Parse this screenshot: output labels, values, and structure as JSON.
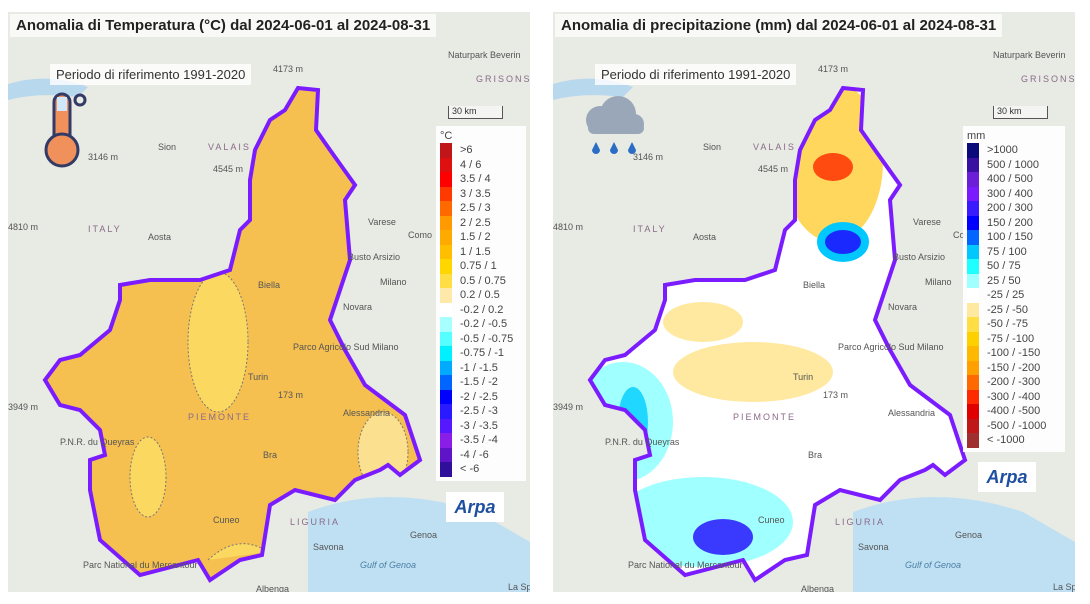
{
  "panels": [
    {
      "title": "Anomalia di Temperatura (°C) dal 2024-06-01 al 2024-08-31",
      "reference": "Periodo di riferimento 1991-2020",
      "icon": "thermometer-icon",
      "scale": "30 km",
      "unit": "°C",
      "logo": "Arpa",
      "legend": [
        {
          "label": ">6",
          "color": "#c0161a"
        },
        {
          "label": "4 / 6",
          "color": "#de1010"
        },
        {
          "label": "3.5 / 4",
          "color": "#ff0000"
        },
        {
          "label": "3 / 3.5",
          "color": "#ff3a00"
        },
        {
          "label": "2.5 / 3",
          "color": "#ff6a00"
        },
        {
          "label": "2 / 2.5",
          "color": "#ff9a00"
        },
        {
          "label": "1.5 / 2",
          "color": "#ffaa00"
        },
        {
          "label": "1 / 1.5",
          "color": "#ffbf00"
        },
        {
          "label": "0.75 / 1",
          "color": "#ffd700"
        },
        {
          "label": "0.5 / 0.75",
          "color": "#ffdd44"
        },
        {
          "label": "0.2 / 0.5",
          "color": "#ffe9a8"
        },
        {
          "label": "-0.2 / 0.2",
          "color": "#ffffff"
        },
        {
          "label": "-0.2 / -0.5",
          "color": "#a8ffff"
        },
        {
          "label": "-0.5 / -0.75",
          "color": "#55ffff"
        },
        {
          "label": "-0.75 / -1",
          "color": "#00f0ff"
        },
        {
          "label": "-1 / -1.5",
          "color": "#00aaff"
        },
        {
          "label": "-1.5 / -2",
          "color": "#0066ff"
        },
        {
          "label": "-2 / -2.5",
          "color": "#0000ff"
        },
        {
          "label": "-2.5 / -3",
          "color": "#2a1aff"
        },
        {
          "label": "-3 / -3.5",
          "color": "#5518ff"
        },
        {
          "label": "-3.5 / -4",
          "color": "#8a1ee8"
        },
        {
          "label": "-4 / -6",
          "color": "#6014c8"
        },
        {
          "label": "< -6",
          "color": "#30109a"
        }
      ]
    },
    {
      "title": "Anomalia di precipitazione (mm) dal 2024-06-01 al 2024-08-31",
      "reference": "Periodo di riferimento 1991-2020",
      "icon": "rain-cloud-icon",
      "scale": "30 km",
      "unit": "mm",
      "logo": "Arpa",
      "legend": [
        {
          "label": ">1000",
          "color": "#0a0a7a"
        },
        {
          "label": "500 / 1000",
          "color": "#3a10a0"
        },
        {
          "label": "400 / 500",
          "color": "#6a1ed8"
        },
        {
          "label": "300 / 400",
          "color": "#7a1aff"
        },
        {
          "label": "200 / 300",
          "color": "#3a1aff"
        },
        {
          "label": "150 / 200",
          "color": "#0000ff"
        },
        {
          "label": "100 / 150",
          "color": "#0066ff"
        },
        {
          "label": "75 / 100",
          "color": "#00c8ff"
        },
        {
          "label": "50 / 75",
          "color": "#20ffff"
        },
        {
          "label": "25 / 50",
          "color": "#a0ffff"
        },
        {
          "label": "-25 / 25",
          "color": "#ffffff"
        },
        {
          "label": "-25 / -50",
          "color": "#ffe9a0"
        },
        {
          "label": "-50 / -75",
          "color": "#ffdd44"
        },
        {
          "label": "-75 / -100",
          "color": "#ffd000"
        },
        {
          "label": "-100 / -150",
          "color": "#ffb800"
        },
        {
          "label": "-150 / -200",
          "color": "#ffa000"
        },
        {
          "label": "-200 / -300",
          "color": "#ff6a00"
        },
        {
          "label": "-300 / -400",
          "color": "#ff2a00"
        },
        {
          "label": "-400 / -500",
          "color": "#e00000"
        },
        {
          "label": "-500 / -1000",
          "color": "#c01818"
        },
        {
          "label": "< -1000",
          "color": "#a03030"
        }
      ]
    }
  ],
  "places": [
    "Sion",
    "VALAIS",
    "Aosta",
    "ITALY",
    "Biella",
    "Novara",
    "Milano",
    "Turin",
    "PIEMONTE",
    "Alessandria",
    "Bra",
    "Cuneo",
    "LIGURIA",
    "Genoa",
    "Savona",
    "Albenga",
    "Gulf of Genoa",
    "La Spezia",
    "Varese",
    "Como",
    "Busto Arsizio",
    "P.N.R. du Queyras",
    "Parc National du Mercantour",
    "Parco Agricolo Sud Milano",
    "Naturpark Beverin",
    "GRISONS",
    "4545 m",
    "4173 m",
    "3146 m",
    "4810 m",
    "3949 m",
    "173 m"
  ],
  "colors": {
    "border": "#7a1cff",
    "temp_fill": "#f7be48"
  }
}
